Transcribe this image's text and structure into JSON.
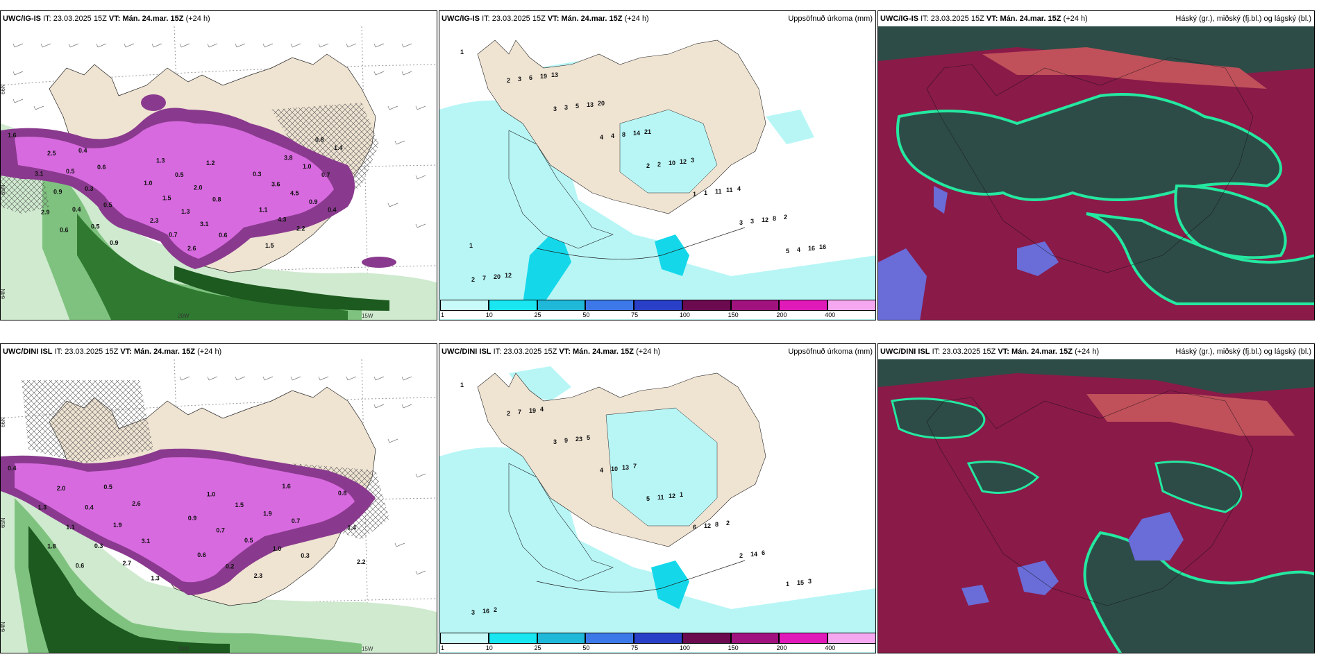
{
  "rows": [
    {
      "model": "UWC/IG-IS",
      "it_label": "IT:",
      "it_value": "23.03.2025 15Z",
      "vt_label": "VT:",
      "vt_value": "Mán. 24.mar. 15Z",
      "lead": "(+24 h)",
      "precip_title": "Uppsöfnuð úrkoma (mm)",
      "cloud_title": "Háský (gr.), miðský (fj.bl.) og lágský (bl.)",
      "left_values": [
        "1.6",
        "3.1",
        "2.9",
        "2.5",
        "0.9",
        "0.6",
        "0.5",
        "0.4",
        "0.4",
        "0.3",
        "0.5",
        "0.6",
        "0.5",
        "0.9",
        "1.0",
        "2.3",
        "1.3",
        "1.5",
        "0.7",
        "0.5",
        "1.3",
        "2.6",
        "2.0",
        "3.1",
        "1.2",
        "0.8",
        "0.6",
        "0.3",
        "1.1",
        "1.5",
        "3.6",
        "4.3",
        "3.8",
        "4.5",
        "2.2",
        "1.0",
        "0.9",
        "0.8",
        "0.7",
        "0.4",
        "1.4"
      ],
      "mid_values": [
        "1",
        "2",
        "3",
        "4",
        "2",
        "1",
        "3",
        "5",
        "2",
        "3",
        "3",
        "4",
        "2",
        "1",
        "3",
        "4",
        "7",
        "6",
        "5",
        "8",
        "10",
        "11",
        "12",
        "16",
        "20",
        "19",
        "13",
        "14",
        "12",
        "11",
        "8",
        "16",
        "12",
        "13",
        "20",
        "21",
        "3",
        "4",
        "2",
        "1"
      ],
      "axis_labels": [
        "66N",
        "65N",
        "64N",
        "20W",
        "15W"
      ]
    },
    {
      "model": "UWC/DINI ISL",
      "it_label": "IT:",
      "it_value": "23.03.2025 15Z",
      "vt_label": "VT:",
      "vt_value": "Mán. 24.mar. 15Z",
      "lead": "(+24 h)",
      "precip_title": "Uppsöfnuð úrkoma (mm)",
      "cloud_title": "Háský (gr.), miðský (fj.bl.) og lágský (bl.)",
      "left_values": [
        "0.4",
        "1.3",
        "1.8",
        "2.0",
        "1.1",
        "0.6",
        "0.4",
        "0.3",
        "0.5",
        "1.9",
        "2.7",
        "2.6",
        "3.1",
        "1.3",
        "0.9",
        "0.6",
        "1.0",
        "0.7",
        "0.2",
        "1.5",
        "0.5",
        "2.3",
        "1.9",
        "1.0",
        "1.6",
        "0.7",
        "0.3",
        "0.8",
        "1.4",
        "2.2"
      ],
      "mid_values": [
        "1",
        "2",
        "3",
        "4",
        "5",
        "6",
        "2",
        "1",
        "3",
        "7",
        "9",
        "10",
        "11",
        "12",
        "14",
        "15",
        "16",
        "19",
        "23",
        "13",
        "12",
        "8",
        "6",
        "3",
        "2",
        "4",
        "5",
        "7",
        "1",
        "2"
      ],
      "axis_labels": [
        "66N",
        "65N",
        "64N",
        "20W",
        "15W"
      ]
    }
  ],
  "legend": {
    "ticks": [
      "1",
      "10",
      "25",
      "50",
      "75",
      "100",
      "150",
      "200",
      "400"
    ],
    "colors": [
      "#c8fafa",
      "#19e6f0",
      "#1fb8d8",
      "#3d78e8",
      "#2a3fc8",
      "#6b0a4f",
      "#a0127e",
      "#e01ab8",
      "#f5a8f0"
    ]
  },
  "colors": {
    "land": "#efe3d2",
    "precip_light": "#b8f6f6",
    "precip_mid": "#14d8ea",
    "rain_purple": "#d86ae0",
    "rain_dark": "#8a3a8e",
    "green_light": "#cfeacf",
    "green_dark": "#1d5a1f",
    "cloud_high": "#8a1a48",
    "cloud_mid": "#2e4c47",
    "cloud_low": "#6a6cd8",
    "cloud_edge": "#24e8a0"
  }
}
